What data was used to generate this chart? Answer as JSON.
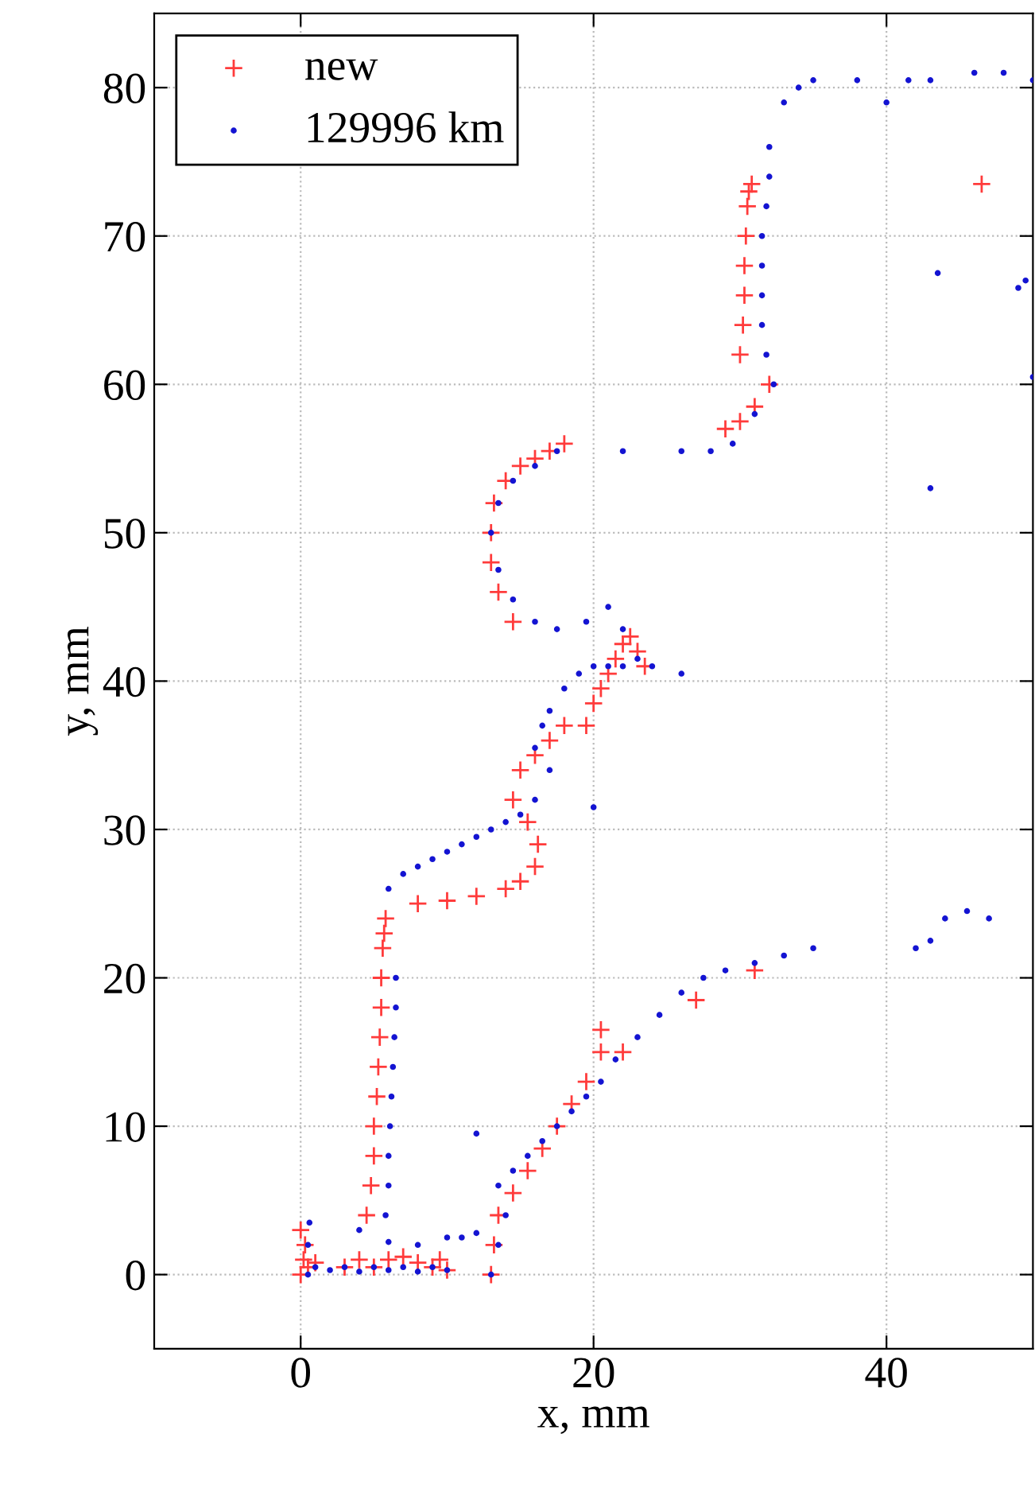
{
  "chart_data": {
    "type": "scatter",
    "xlabel": "x, mm",
    "ylabel": "y, mm",
    "xlim": [
      -10,
      50
    ],
    "ylim": [
      -5,
      85
    ],
    "xticks": [
      0,
      20,
      40
    ],
    "yticks": [
      0,
      10,
      20,
      30,
      40,
      50,
      60,
      70,
      80
    ],
    "grid": true,
    "legend": "top left",
    "series": [
      {
        "name": "new",
        "color": "#ff3b3b",
        "marker": "cross",
        "x": [
          0,
          0.2,
          0.3,
          0,
          0.5,
          1,
          3,
          4,
          5,
          6,
          7,
          8,
          9,
          9.5,
          10,
          4.5,
          4.8,
          5,
          5,
          5.2,
          5.3,
          5.4,
          5.5,
          5.5,
          5.6,
          5.7,
          5.8,
          8,
          10,
          12,
          14,
          15,
          16,
          16.2,
          15.5,
          14.5,
          15,
          16,
          17,
          18,
          19.5,
          20,
          20.5,
          21,
          21.5,
          22,
          22.5,
          23,
          23.5,
          14.5,
          13.5,
          13,
          13,
          13.2,
          14,
          15,
          16,
          17,
          18,
          29,
          30,
          31,
          32,
          30,
          30.2,
          30.3,
          30.3,
          30.4,
          30.5,
          30.6,
          30.8,
          46.5,
          13,
          13.2,
          13.5,
          14.5,
          15.5,
          16.5,
          17.5,
          18.5,
          19.5,
          20.5,
          20.5,
          22,
          27,
          31
        ],
        "values": [
          0,
          1,
          2,
          3,
          0.5,
          0.8,
          0.5,
          1,
          0.5,
          1,
          1.2,
          0.8,
          0.5,
          1,
          0.3,
          4,
          6,
          8,
          10,
          12,
          14,
          16,
          18,
          20,
          22,
          23,
          24,
          25,
          25.2,
          25.5,
          26,
          26.5,
          27.5,
          29,
          30.5,
          32,
          34,
          35,
          36,
          37,
          37,
          38.5,
          39.5,
          40.5,
          41.5,
          42.5,
          43,
          42,
          41,
          44,
          46,
          48,
          50,
          52,
          53.5,
          54.5,
          55,
          55.5,
          56,
          57,
          57.5,
          58.5,
          60,
          62,
          64,
          66,
          68,
          70,
          72,
          73,
          73.5,
          73.5,
          0,
          2,
          4,
          5.5,
          7,
          8.5,
          10,
          11.5,
          13,
          15,
          16.5,
          15,
          18.5,
          20.5
        ]
      },
      {
        "name": "129996 km",
        "color": "#1414d2",
        "marker": "circle",
        "x": [
          0.5,
          0.5,
          0.6,
          1,
          2,
          3,
          4,
          5,
          6,
          7,
          8,
          9,
          10,
          4,
          6,
          8,
          10,
          11,
          12,
          5.8,
          6,
          6,
          6.1,
          6.2,
          6.3,
          6.4,
          6.5,
          6.5,
          6,
          7,
          8,
          9,
          10,
          11,
          12,
          13,
          14,
          15,
          16,
          17,
          16,
          16.5,
          17,
          18,
          19,
          20,
          21,
          22,
          23,
          24,
          26,
          20,
          22,
          21,
          19.5,
          17.5,
          16,
          14.5,
          13.5,
          13,
          13.5,
          14.5,
          16,
          17.5,
          22,
          26,
          28,
          29.5,
          31,
          32.3,
          31.8,
          31.5,
          31.5,
          31.5,
          31.5,
          31.8,
          32,
          32,
          33,
          34,
          35,
          38,
          40,
          41.5,
          43,
          46,
          48,
          50,
          43.5,
          49,
          49.5,
          50,
          43,
          12,
          13,
          13.5,
          14,
          13.5,
          14.5,
          15.5,
          16.5,
          17.5,
          18.5,
          19.5,
          20.5,
          21.5,
          23,
          24.5,
          26,
          27.5,
          29,
          31,
          33,
          35,
          42,
          43,
          44,
          45.5,
          47
        ],
        "values": [
          0,
          2,
          3.5,
          0.5,
          0.3,
          0.5,
          0.2,
          0.5,
          0.3,
          0.5,
          0.2,
          0.5,
          0.3,
          3,
          2.2,
          2,
          2.5,
          2.5,
          2.8,
          4,
          6,
          8,
          10,
          12,
          14,
          16,
          18,
          20,
          26,
          27,
          27.5,
          28,
          28.5,
          29,
          29.5,
          30,
          30.5,
          31,
          32,
          34,
          35.5,
          37,
          38,
          39.5,
          40.5,
          41,
          41,
          41,
          41.5,
          41,
          40.5,
          31.5,
          43.5,
          45,
          44,
          43.5,
          44,
          45.5,
          47.5,
          50,
          52,
          53.5,
          54.5,
          55.5,
          55.5,
          55.5,
          55.5,
          56,
          58,
          60,
          62,
          64,
          66,
          68,
          70,
          72,
          74,
          76,
          79,
          80,
          80.5,
          80.5,
          79,
          80.5,
          80.5,
          81,
          81,
          80.5,
          67.5,
          66.5,
          67,
          60.5,
          53,
          9.5,
          0,
          2,
          4,
          6,
          7,
          8,
          9,
          10,
          11,
          12,
          13,
          14.5,
          16,
          17.5,
          19,
          20,
          20.5,
          21,
          21.5,
          22,
          22,
          22.5,
          24,
          24.5,
          24
        ]
      }
    ]
  }
}
